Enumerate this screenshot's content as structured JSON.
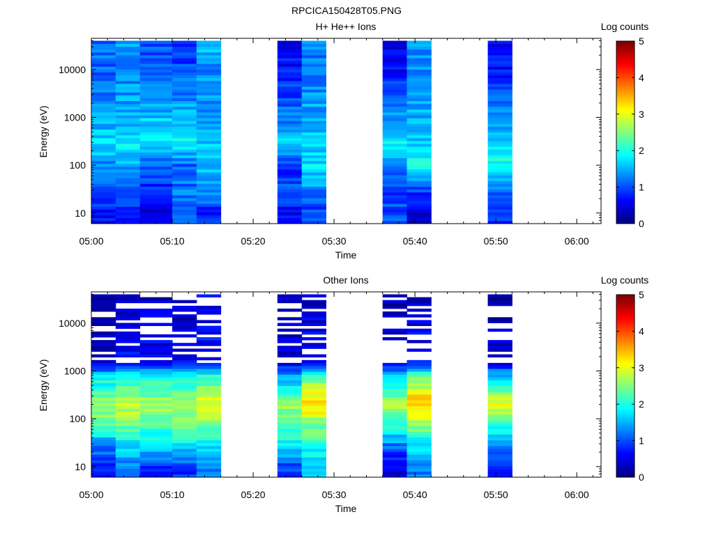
{
  "page_title": "RPCICA150428T05.PNG",
  "chart_data": [
    {
      "type": "heatmap",
      "title": "H+ He++ Ions",
      "xlabel": "Time",
      "ylabel": "Energy (eV)",
      "colorbar_label": "Log counts",
      "y_scale": "log",
      "ylim": [
        6,
        45000
      ],
      "xlim": [
        "05:00",
        "06:03"
      ],
      "x_ticks": [
        "05:00",
        "05:10",
        "05:20",
        "05:30",
        "05:40",
        "05:50",
        "06:00"
      ],
      "y_ticks": [
        "10",
        "100",
        "1000",
        "10000"
      ],
      "colorbar_ticks": [
        "0",
        "1",
        "2",
        "3",
        "4",
        "5"
      ],
      "color_range": [
        0,
        5
      ],
      "colormap": "jet",
      "grid": false,
      "data_intervals": [
        {
          "start": "05:00",
          "end": "05:16"
        },
        {
          "start": "05:23",
          "end": "05:29"
        },
        {
          "start": "05:36",
          "end": "05:42"
        },
        {
          "start": "05:49",
          "end": "05:52"
        }
      ],
      "column_profiles": [
        {
          "start": "05:00",
          "end": "05:03",
          "levels": [
            [
              10,
              0.7
            ],
            [
              30,
              1.1
            ],
            [
              100,
              1.3
            ],
            [
              300,
              1.8
            ],
            [
              1000,
              1.4
            ],
            [
              10000,
              1.1
            ],
            [
              40000,
              1.2
            ]
          ]
        },
        {
          "start": "05:03",
          "end": "05:06",
          "levels": [
            [
              10,
              0.8
            ],
            [
              30,
              1.0
            ],
            [
              100,
              1.5
            ],
            [
              300,
              1.9
            ],
            [
              1000,
              1.5
            ],
            [
              10000,
              1.3
            ],
            [
              40000,
              1.5
            ]
          ]
        },
        {
          "start": "05:06",
          "end": "05:10",
          "levels": [
            [
              10,
              0.4
            ],
            [
              30,
              0.9
            ],
            [
              100,
              1.0
            ],
            [
              300,
              1.8
            ],
            [
              1000,
              1.6
            ],
            [
              10000,
              1.0
            ],
            [
              40000,
              1.0
            ]
          ]
        },
        {
          "start": "05:10",
          "end": "05:13",
          "levels": [
            [
              10,
              1.1
            ],
            [
              30,
              1.2
            ],
            [
              100,
              1.1
            ],
            [
              300,
              1.9
            ],
            [
              1000,
              1.5
            ],
            [
              10000,
              1.0
            ],
            [
              40000,
              0.8
            ]
          ]
        },
        {
          "start": "05:13",
          "end": "05:16",
          "levels": [
            [
              10,
              0.8
            ],
            [
              30,
              1.3
            ],
            [
              100,
              1.6
            ],
            [
              300,
              1.6
            ],
            [
              1000,
              1.4
            ],
            [
              10000,
              1.3
            ],
            [
              40000,
              1.6
            ]
          ]
        },
        {
          "start": "05:23",
          "end": "05:26",
          "levels": [
            [
              10,
              0.6
            ],
            [
              30,
              1.0
            ],
            [
              100,
              0.8
            ],
            [
              300,
              1.7
            ],
            [
              1000,
              1.2
            ],
            [
              10000,
              0.7
            ],
            [
              40000,
              0.6
            ]
          ]
        },
        {
          "start": "05:26",
          "end": "05:29",
          "levels": [
            [
              10,
              0.9
            ],
            [
              30,
              1.3
            ],
            [
              100,
              1.7
            ],
            [
              300,
              1.7
            ],
            [
              1000,
              1.5
            ],
            [
              10000,
              1.2
            ],
            [
              40000,
              1.3
            ]
          ]
        },
        {
          "start": "05:36",
          "end": "05:39",
          "levels": [
            [
              10,
              1.0
            ],
            [
              30,
              0.9
            ],
            [
              100,
              1.3
            ],
            [
              300,
              1.9
            ],
            [
              1000,
              1.4
            ],
            [
              10000,
              0.6
            ],
            [
              40000,
              0.5
            ]
          ]
        },
        {
          "start": "05:39",
          "end": "05:42",
          "levels": [
            [
              10,
              0.3
            ],
            [
              30,
              1.0
            ],
            [
              100,
              1.9
            ],
            [
              300,
              1.6
            ],
            [
              1000,
              1.5
            ],
            [
              10000,
              1.3
            ],
            [
              40000,
              1.3
            ]
          ]
        },
        {
          "start": "05:49",
          "end": "05:52",
          "levels": [
            [
              10,
              0.8
            ],
            [
              30,
              1.2
            ],
            [
              100,
              2.0
            ],
            [
              300,
              1.7
            ],
            [
              1000,
              1.4
            ],
            [
              10000,
              0.7
            ],
            [
              40000,
              0.6
            ]
          ]
        }
      ]
    },
    {
      "type": "heatmap",
      "title": "Other Ions",
      "xlabel": "Time",
      "ylabel": "Energy (eV)",
      "colorbar_label": "Log counts",
      "y_scale": "log",
      "ylim": [
        6,
        45000
      ],
      "xlim": [
        "05:00",
        "06:03"
      ],
      "x_ticks": [
        "05:00",
        "05:10",
        "05:20",
        "05:30",
        "05:40",
        "05:50",
        "06:00"
      ],
      "y_ticks": [
        "10",
        "100",
        "1000",
        "10000"
      ],
      "colorbar_ticks": [
        "0",
        "1",
        "2",
        "3",
        "4",
        "5"
      ],
      "color_range": [
        0,
        5
      ],
      "colormap": "jet",
      "grid": false,
      "data_intervals": [
        {
          "start": "05:00",
          "end": "05:16"
        },
        {
          "start": "05:23",
          "end": "05:29"
        },
        {
          "start": "05:36",
          "end": "05:42"
        },
        {
          "start": "05:49",
          "end": "05:52"
        }
      ],
      "column_profiles": [
        {
          "start": "05:00",
          "end": "05:03",
          "levels": [
            [
              10,
              0.7
            ],
            [
              30,
              1.4
            ],
            [
              100,
              2.5
            ],
            [
              200,
              2.7
            ],
            [
              800,
              1.7
            ],
            [
              1500,
              0.4
            ],
            [
              40000,
              0.3
            ]
          ]
        },
        {
          "start": "05:03",
          "end": "05:06",
          "levels": [
            [
              10,
              1.2
            ],
            [
              30,
              1.8
            ],
            [
              100,
              2.6
            ],
            [
              200,
              2.8
            ],
            [
              800,
              1.9
            ],
            [
              1500,
              0.6
            ],
            [
              40000,
              0.4
            ]
          ]
        },
        {
          "start": "05:06",
          "end": "05:10",
          "levels": [
            [
              10,
              0.9
            ],
            [
              30,
              1.7
            ],
            [
              100,
              2.5
            ],
            [
              200,
              2.7
            ],
            [
              800,
              1.9
            ],
            [
              1500,
              0.6
            ],
            [
              40000,
              0.3
            ]
          ]
        },
        {
          "start": "05:10",
          "end": "05:13",
          "levels": [
            [
              10,
              0.9
            ],
            [
              30,
              1.8
            ],
            [
              100,
              2.6
            ],
            [
              200,
              2.6
            ],
            [
              800,
              1.8
            ],
            [
              1500,
              0.5
            ],
            [
              40000,
              0.3
            ]
          ]
        },
        {
          "start": "05:13",
          "end": "05:16",
          "levels": [
            [
              10,
              1.3
            ],
            [
              30,
              1.8
            ],
            [
              100,
              2.7
            ],
            [
              200,
              3.1
            ],
            [
              800,
              2.1
            ],
            [
              1500,
              0.7
            ],
            [
              40000,
              0.5
            ]
          ]
        },
        {
          "start": "05:23",
          "end": "05:26",
          "levels": [
            [
              10,
              1.0
            ],
            [
              30,
              1.8
            ],
            [
              100,
              2.4
            ],
            [
              200,
              2.6
            ],
            [
              800,
              1.4
            ],
            [
              1500,
              0.5
            ],
            [
              40000,
              0.2
            ]
          ]
        },
        {
          "start": "05:26",
          "end": "05:29",
          "levels": [
            [
              10,
              1.7
            ],
            [
              30,
              2.0
            ],
            [
              100,
              2.7
            ],
            [
              200,
              3.4
            ],
            [
              800,
              2.3
            ],
            [
              1500,
              0.7
            ],
            [
              40000,
              0.3
            ]
          ]
        },
        {
          "start": "05:36",
          "end": "05:39",
          "levels": [
            [
              10,
              0.5
            ],
            [
              30,
              1.3
            ],
            [
              100,
              2.3
            ],
            [
              200,
              2.7
            ],
            [
              800,
              1.5
            ],
            [
              1500,
              0.5
            ],
            [
              40000,
              0.2
            ]
          ]
        },
        {
          "start": "05:39",
          "end": "05:42",
          "levels": [
            [
              10,
              1.2
            ],
            [
              30,
              1.8
            ],
            [
              100,
              2.8
            ],
            [
              200,
              3.5
            ],
            [
              800,
              2.4
            ],
            [
              1500,
              0.7
            ],
            [
              40000,
              0.3
            ]
          ]
        },
        {
          "start": "05:49",
          "end": "05:52",
          "levels": [
            [
              10,
              0.6
            ],
            [
              30,
              1.5
            ],
            [
              100,
              2.3
            ],
            [
              200,
              3.0
            ],
            [
              800,
              1.6
            ],
            [
              1500,
              0.5
            ],
            [
              40000,
              0.2
            ]
          ]
        }
      ]
    }
  ]
}
